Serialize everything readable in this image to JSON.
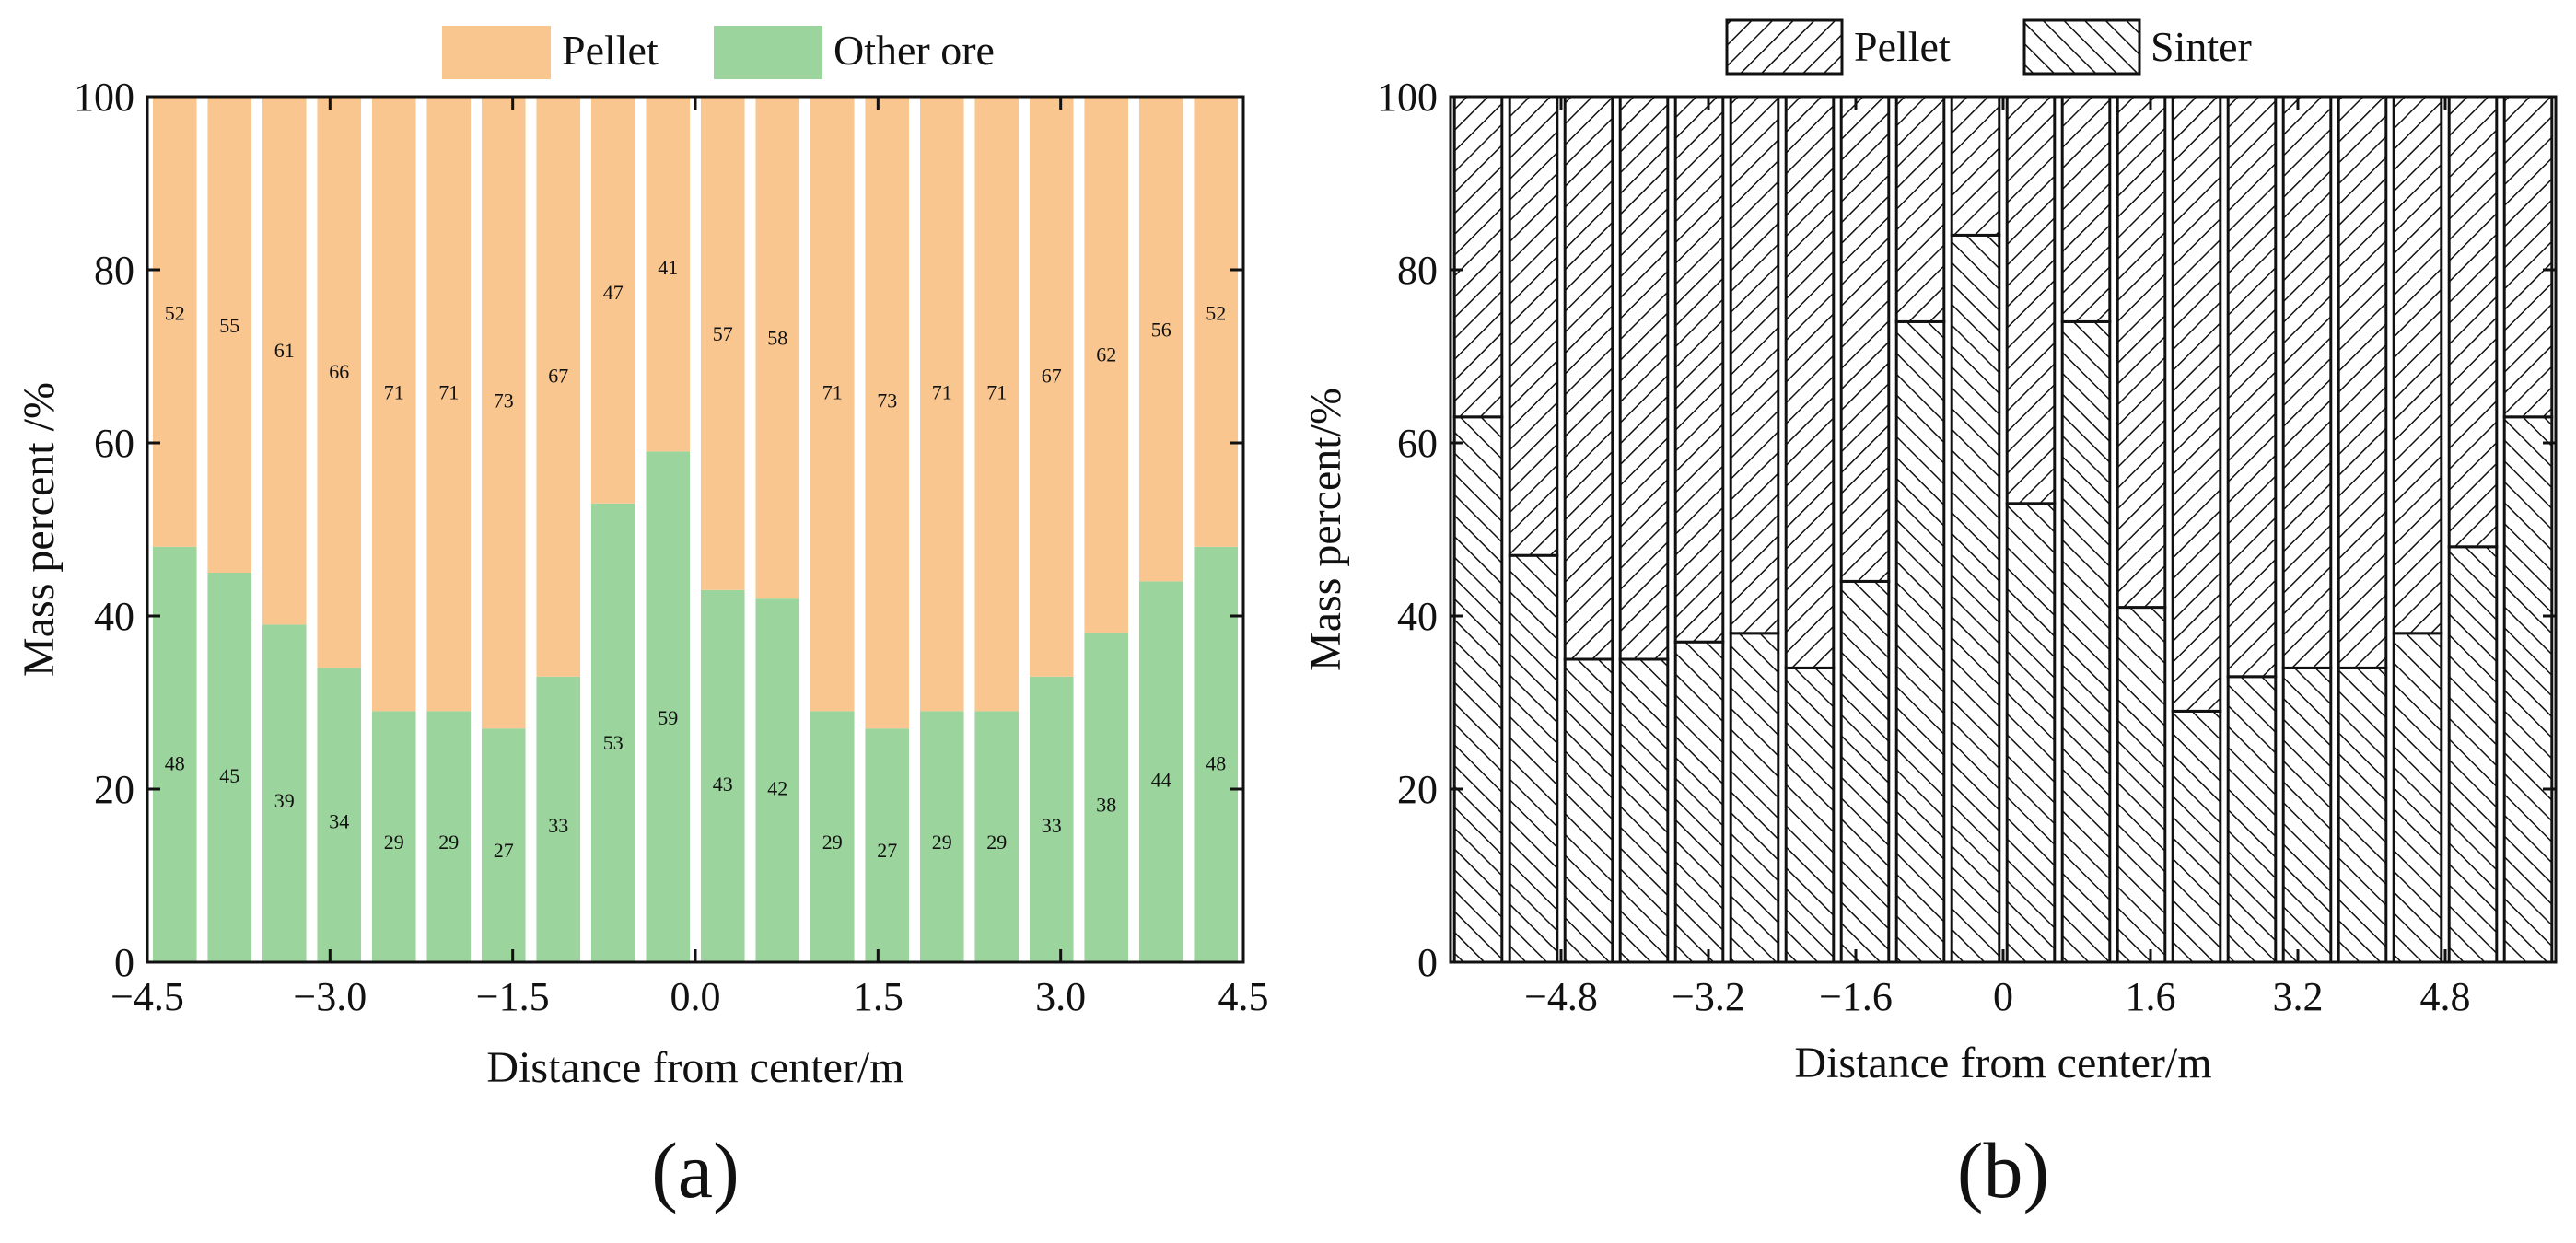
{
  "chart_data": [
    {
      "type": "bar",
      "stacked": true,
      "panel_label": "(a)",
      "title": "",
      "xlabel": "Distance from center/m",
      "ylabel": "Mass percent /%",
      "ylim": [
        0,
        100
      ],
      "xlim": [
        -4.5,
        4.5
      ],
      "yticks": [
        "0",
        "20",
        "40",
        "60",
        "80",
        "100"
      ],
      "xticks": [
        "−4.5",
        "−3.0",
        "−1.5",
        "0.0",
        "1.5",
        "3.0",
        "4.5"
      ],
      "legend": [
        "Pellet",
        "Other ore"
      ],
      "legend_position": "top",
      "colors": {
        "Pellet": "#f9c68f",
        "Other ore": "#9bd49d"
      },
      "series": [
        {
          "name": "Other ore",
          "values": [
            48,
            45,
            39,
            34,
            29,
            29,
            27,
            33,
            53,
            59,
            43,
            42,
            29,
            27,
            29,
            29,
            33,
            38,
            44,
            48
          ]
        },
        {
          "name": "Pellet",
          "values": [
            52,
            55,
            61,
            66,
            71,
            71,
            73,
            67,
            47,
            41,
            57,
            58,
            71,
            73,
            71,
            71,
            67,
            62,
            56,
            52
          ]
        }
      ]
    },
    {
      "type": "bar",
      "stacked": true,
      "panel_label": "(b)",
      "title": "",
      "xlabel": "Distance from center/m",
      "ylabel": "Mass percent/%",
      "ylim": [
        0,
        100
      ],
      "xlim": [
        -6,
        6
      ],
      "yticks": [
        "0",
        "20",
        "40",
        "60",
        "80",
        "100"
      ],
      "xticks": [
        "−4.8",
        "−3.2",
        "−1.6",
        "0",
        "1.6",
        "3.2",
        "4.8"
      ],
      "legend": [
        "Pellet",
        "Sinter"
      ],
      "legend_position": "top",
      "pattern": {
        "Pellet": "forward-hatch",
        "Sinter": "back-hatch"
      },
      "series": [
        {
          "name": "Sinter",
          "values": [
            63,
            47,
            35,
            35,
            37,
            38,
            34,
            44,
            74,
            84,
            53,
            74,
            41,
            29,
            33,
            34,
            34,
            38,
            48,
            63
          ]
        },
        {
          "name": "Pellet",
          "values": [
            37,
            53,
            65,
            65,
            63,
            62,
            66,
            56,
            26,
            16,
            47,
            26,
            59,
            71,
            67,
            66,
            66,
            62,
            52,
            37
          ]
        }
      ]
    }
  ]
}
